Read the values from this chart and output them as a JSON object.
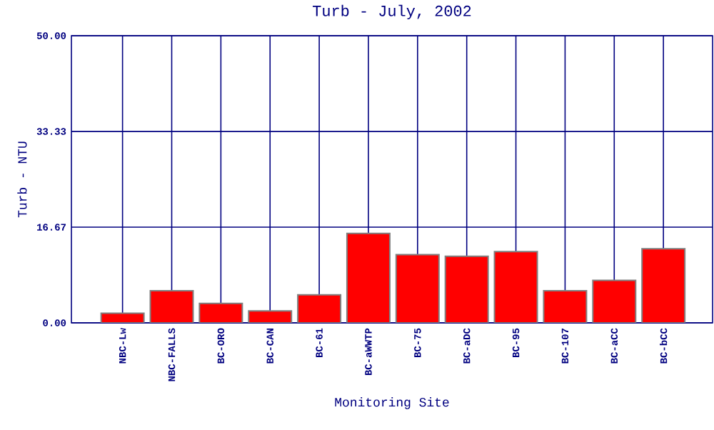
{
  "chart_data": {
    "type": "bar",
    "title": "Turb - July, 2002",
    "xlabel": "Monitoring Site",
    "ylabel": "Turb - NTU",
    "categories": [
      "NBC-Lw",
      "NBC-FALLS",
      "BC-ORO",
      "BC-CAN",
      "BC-61",
      "BC-aWWTP",
      "BC-75",
      "BC-aDC",
      "BC-95",
      "BC-107",
      "BC-aCC",
      "BC-bCC"
    ],
    "values": [
      1.7,
      5.6,
      3.4,
      2.1,
      4.9,
      15.6,
      11.9,
      11.6,
      12.4,
      5.6,
      7.4,
      12.9
    ],
    "color": "#ff0000",
    "ylim": [
      0,
      50
    ],
    "yticks": [
      {
        "value": 0,
        "label": "0.00"
      },
      {
        "value": 16.67,
        "label": "16.67"
      },
      {
        "value": 33.33,
        "label": "33.33"
      },
      {
        "value": 50,
        "label": "50.00"
      }
    ],
    "grid": true
  }
}
